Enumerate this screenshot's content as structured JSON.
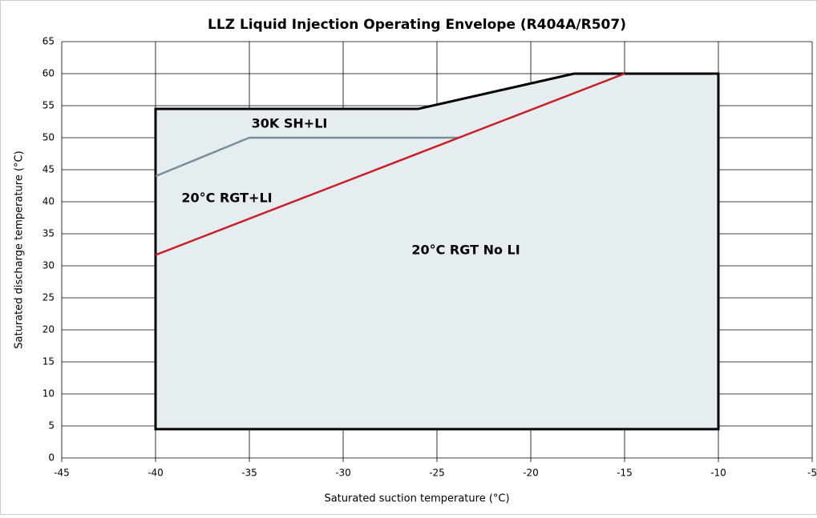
{
  "chart_data": {
    "type": "line",
    "title": "LLZ Liquid Injection Operating Envelope (R404A/R507)",
    "x_label": "Saturated suction temperature (°C)",
    "y_label": "Saturated discharge temperature (°C)",
    "annotations": [
      "30K SH+LI",
      "20°C RGT+LI",
      "20°C RGT No LI"
    ],
    "xlim": [
      -45,
      -5
    ],
    "xticks": [
      -45,
      -40,
      -35,
      -30,
      -25,
      -20,
      -15,
      -10,
      -5
    ],
    "ylim": [
      0,
      65
    ],
    "yticks": [
      0,
      5,
      10,
      15,
      20,
      25,
      30,
      35,
      40,
      45,
      50,
      55,
      60,
      65
    ],
    "grid": true,
    "series": [
      {
        "color": "#000000",
        "fill": "#e6edf0",
        "closed": true,
        "x": [
          -40,
          -40,
          -26,
          -17.7,
          -10,
          -10
        ],
        "values": [
          4.5,
          54.5,
          54.5,
          60,
          60,
          4.5
        ]
      },
      {
        "color": "#7b8e9a",
        "x": [
          -40,
          -35,
          -23.8
        ],
        "values": [
          44,
          50,
          50
        ]
      },
      {
        "color": "#c8202a",
        "x": [
          -40,
          -15
        ],
        "values": [
          31.7,
          60
        ]
      }
    ]
  }
}
